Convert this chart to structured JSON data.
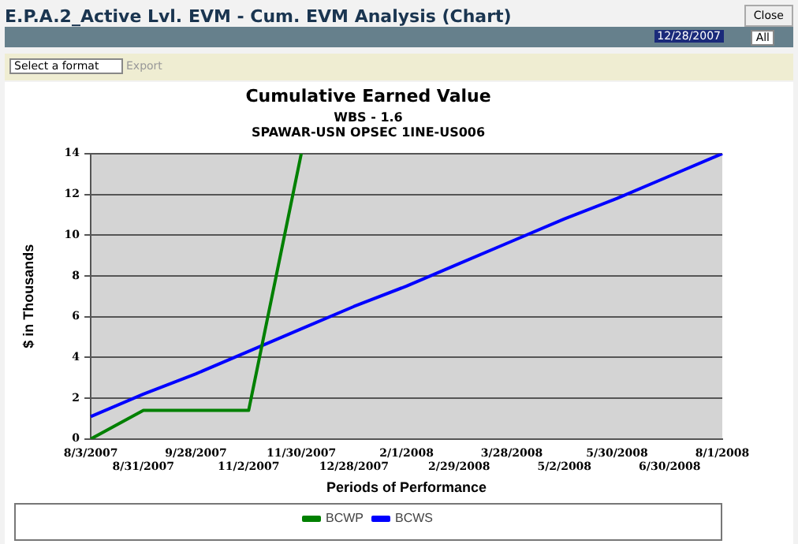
{
  "chart_data": {
    "type": "line",
    "title": "Cumulative Earned Value",
    "subtitle": "WBS - 1.6\nSPAWAR-USN OPSEC 1INE-US006",
    "xlabel": "Periods of Performance",
    "ylabel": "$ in Thousands",
    "categories": [
      "8/3/2007",
      "8/31/2007",
      "9/28/2007",
      "11/2/2007",
      "11/30/2007",
      "12/28/2007",
      "2/1/2008",
      "2/29/2008",
      "3/28/2008",
      "5/2/2008",
      "5/30/2008",
      "6/30/2008",
      "8/1/2008"
    ],
    "series": [
      {
        "name": "BCWP",
        "color": "#008000",
        "values": [
          0,
          1.4,
          1.4,
          1.4,
          14,
          null,
          null,
          null,
          null,
          null,
          null,
          null,
          null
        ]
      },
      {
        "name": "BCWS",
        "color": "#0000ff",
        "values": [
          1.1,
          2.2,
          3.2,
          4.3,
          5.4,
          6.5,
          7.5,
          8.6,
          9.7,
          10.8,
          11.8,
          12.9,
          14.0
        ]
      }
    ],
    "ylim": [
      0,
      14
    ],
    "yticks": [
      0,
      2,
      4,
      6,
      8,
      10,
      12,
      14
    ],
    "grid": "y",
    "legend": "bottom",
    "marker": "none",
    "line_style": "solid",
    "annotations": [
      "E.P.A.2_Active Lvl. EVM - Cum. EVM Analysis (Chart)",
      "Close",
      "12/28/2007",
      "All",
      "Select a format",
      "Export"
    ]
  }
}
